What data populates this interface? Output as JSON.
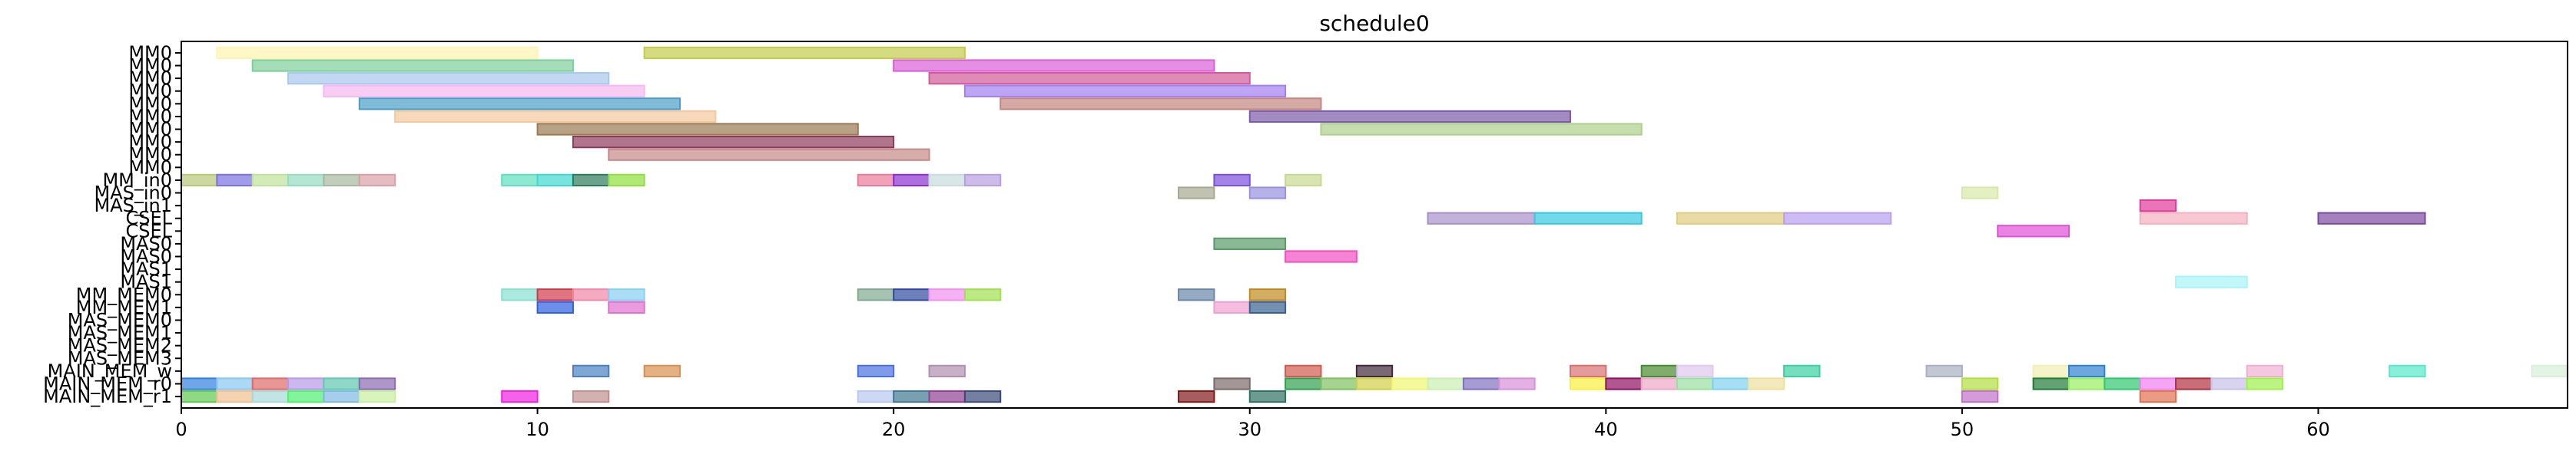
{
  "chart_data": {
    "type": "gantt",
    "title": "schedule0",
    "xlabel": "",
    "ylabel": "",
    "xlim": [
      0,
      67
    ],
    "x_ticks": [
      0,
      10,
      20,
      30,
      40,
      50,
      60
    ],
    "grid": false,
    "rows": [
      "MM0",
      "MM0",
      "MM0",
      "MM0",
      "MM0",
      "MM0",
      "MM0",
      "MM0",
      "MM0",
      "MM0",
      "MM_in0",
      "MAS_in0",
      "MAS_in1",
      "CSEL",
      "CSEL",
      "MAS0",
      "MAS0",
      "MAS1",
      "MAS1",
      "MM_MEM0",
      "MM_MEM1",
      "MAS_MEM0",
      "MAS_MEM1",
      "MAS_MEM2",
      "MAS_MEM3",
      "MAIN_MEM_w",
      "MAIN_MEM_r0",
      "MAIN_MEM_r1"
    ],
    "tasks": [
      {
        "row": 0,
        "start": 1,
        "end": 10,
        "color": "#fff3b0"
      },
      {
        "row": 0,
        "start": 13,
        "end": 22,
        "color": "#c2cc4c"
      },
      {
        "row": 1,
        "start": 2,
        "end": 11,
        "color": "#7ecf9a"
      },
      {
        "row": 1,
        "start": 20,
        "end": 29,
        "color": "#d85fd8"
      },
      {
        "row": 2,
        "start": 3,
        "end": 12,
        "color": "#a8c8ec"
      },
      {
        "row": 2,
        "start": 21,
        "end": 30,
        "color": "#d25a9a"
      },
      {
        "row": 3,
        "start": 4,
        "end": 13,
        "color": "#f5b8f0"
      },
      {
        "row": 3,
        "start": 22,
        "end": 31,
        "color": "#a27ff0"
      },
      {
        "row": 4,
        "start": 5,
        "end": 14,
        "color": "#4a9ec7"
      },
      {
        "row": 4,
        "start": 23,
        "end": 32,
        "color": "#c4867e"
      },
      {
        "row": 5,
        "start": 6,
        "end": 15,
        "color": "#f2c89c"
      },
      {
        "row": 5,
        "start": 30,
        "end": 39,
        "color": "#7b5aa6"
      },
      {
        "row": 6,
        "start": 10,
        "end": 19,
        "color": "#9a7a52"
      },
      {
        "row": 6,
        "start": 32,
        "end": 41,
        "color": "#aed08a"
      },
      {
        "row": 7,
        "start": 11,
        "end": 20,
        "color": "#8c3a5a"
      },
      {
        "row": 8,
        "start": 12,
        "end": 21,
        "color": "#c48a88"
      },
      {
        "row": 10,
        "start": 0,
        "end": 1,
        "color": "#b8c878"
      },
      {
        "row": 10,
        "start": 1,
        "end": 2,
        "color": "#7a70e0"
      },
      {
        "row": 10,
        "start": 2,
        "end": 3,
        "color": "#bfe39a"
      },
      {
        "row": 10,
        "start": 3,
        "end": 4,
        "color": "#96dcc0"
      },
      {
        "row": 10,
        "start": 4,
        "end": 5,
        "color": "#a8b8a0"
      },
      {
        "row": 10,
        "start": 5,
        "end": 6,
        "color": "#d8a0a8"
      },
      {
        "row": 10,
        "start": 9,
        "end": 10,
        "color": "#5ee0c0"
      },
      {
        "row": 10,
        "start": 10,
        "end": 11,
        "color": "#40d8d0"
      },
      {
        "row": 10,
        "start": 11,
        "end": 12,
        "color": "#2e7a5a"
      },
      {
        "row": 10,
        "start": 12,
        "end": 13,
        "color": "#90e040"
      },
      {
        "row": 10,
        "start": 19,
        "end": 20,
        "color": "#e87a9a"
      },
      {
        "row": 10,
        "start": 20,
        "end": 21,
        "color": "#8a30d0"
      },
      {
        "row": 10,
        "start": 21,
        "end": 22,
        "color": "#c8dcdc"
      },
      {
        "row": 10,
        "start": 22,
        "end": 23,
        "color": "#b8a0e0"
      },
      {
        "row": 10,
        "start": 29,
        "end": 30,
        "color": "#7a50e0"
      },
      {
        "row": 10,
        "start": 31,
        "end": 32,
        "color": "#c8d890"
      },
      {
        "row": 11,
        "start": 28,
        "end": 29,
        "color": "#a8a890"
      },
      {
        "row": 11,
        "start": 30,
        "end": 31,
        "color": "#9890e0"
      },
      {
        "row": 11,
        "start": 50,
        "end": 51,
        "color": "#d8e8a8"
      },
      {
        "row": 12,
        "start": 55,
        "end": 56,
        "color": "#e03a9a"
      },
      {
        "row": 13,
        "start": 35,
        "end": 38,
        "color": "#a890c8"
      },
      {
        "row": 13,
        "start": 38,
        "end": 41,
        "color": "#38c8e0"
      },
      {
        "row": 13,
        "start": 42,
        "end": 45,
        "color": "#e0cc80"
      },
      {
        "row": 13,
        "start": 45,
        "end": 48,
        "color": "#b8a0f0"
      },
      {
        "row": 13,
        "start": 55,
        "end": 58,
        "color": "#f4b0c0"
      },
      {
        "row": 13,
        "start": 60,
        "end": 63,
        "color": "#7e4aa0"
      },
      {
        "row": 14,
        "start": 51,
        "end": 53,
        "color": "#e050d8"
      },
      {
        "row": 15,
        "start": 29,
        "end": 31,
        "color": "#5a9a68"
      },
      {
        "row": 16,
        "start": 31,
        "end": 33,
        "color": "#f050c0"
      },
      {
        "row": 18,
        "start": 56,
        "end": 58,
        "color": "#a8f4f8"
      },
      {
        "row": 19,
        "start": 9,
        "end": 10,
        "color": "#88e0d0"
      },
      {
        "row": 19,
        "start": 10,
        "end": 11,
        "color": "#d03a4a"
      },
      {
        "row": 19,
        "start": 11,
        "end": 12,
        "color": "#f088a8"
      },
      {
        "row": 19,
        "start": 12,
        "end": 13,
        "color": "#88d0f0"
      },
      {
        "row": 19,
        "start": 19,
        "end": 20,
        "color": "#80a890"
      },
      {
        "row": 19,
        "start": 20,
        "end": 21,
        "color": "#304aa0"
      },
      {
        "row": 19,
        "start": 21,
        "end": 22,
        "color": "#f090f0"
      },
      {
        "row": 19,
        "start": 22,
        "end": 23,
        "color": "#a0e050"
      },
      {
        "row": 19,
        "start": 28,
        "end": 29,
        "color": "#6a88a8"
      },
      {
        "row": 19,
        "start": 30,
        "end": 31,
        "color": "#c08a20"
      },
      {
        "row": 20,
        "start": 10,
        "end": 11,
        "color": "#3060e0"
      },
      {
        "row": 20,
        "start": 12,
        "end": 13,
        "color": "#e070d0"
      },
      {
        "row": 20,
        "start": 29,
        "end": 30,
        "color": "#f0a0d0"
      },
      {
        "row": 20,
        "start": 30,
        "end": 31,
        "color": "#3a6090"
      },
      {
        "row": 25,
        "start": 11,
        "end": 12,
        "color": "#4a80c0"
      },
      {
        "row": 25,
        "start": 13,
        "end": 14,
        "color": "#d89050"
      },
      {
        "row": 25,
        "start": 19,
        "end": 20,
        "color": "#4a70e0"
      },
      {
        "row": 25,
        "start": 21,
        "end": 22,
        "color": "#b090b0"
      },
      {
        "row": 25,
        "start": 31,
        "end": 32,
        "color": "#d05a50"
      },
      {
        "row": 25,
        "start": 33,
        "end": 34,
        "color": "#402a3a"
      },
      {
        "row": 25,
        "start": 39,
        "end": 40,
        "color": "#d87070"
      },
      {
        "row": 25,
        "start": 41,
        "end": 42,
        "color": "#4a8a30"
      },
      {
        "row": 25,
        "start": 42,
        "end": 43,
        "color": "#e0c8f0"
      },
      {
        "row": 25,
        "start": 45,
        "end": 46,
        "color": "#3ad0a0"
      },
      {
        "row": 25,
        "start": 49,
        "end": 50,
        "color": "#a8b0c0"
      },
      {
        "row": 25,
        "start": 52,
        "end": 53,
        "color": "#f0f0b0"
      },
      {
        "row": 25,
        "start": 53,
        "end": 54,
        "color": "#3080d0"
      },
      {
        "row": 25,
        "start": 58,
        "end": 59,
        "color": "#f0b0d0"
      },
      {
        "row": 25,
        "start": 62,
        "end": 63,
        "color": "#58e8c8"
      },
      {
        "row": 25,
        "start": 66,
        "end": 67,
        "color": "#d8f0d8"
      },
      {
        "row": 26,
        "start": 0,
        "end": 1,
        "color": "#3080e0"
      },
      {
        "row": 26,
        "start": 1,
        "end": 2,
        "color": "#88c8f0"
      },
      {
        "row": 26,
        "start": 2,
        "end": 3,
        "color": "#e06a6a"
      },
      {
        "row": 26,
        "start": 3,
        "end": 4,
        "color": "#b898e8"
      },
      {
        "row": 26,
        "start": 4,
        "end": 5,
        "color": "#60c8b0"
      },
      {
        "row": 26,
        "start": 5,
        "end": 6,
        "color": "#8a6ab0"
      },
      {
        "row": 26,
        "start": 29,
        "end": 30,
        "color": "#7a6a6a"
      },
      {
        "row": 26,
        "start": 31,
        "end": 32,
        "color": "#30a050"
      },
      {
        "row": 26,
        "start": 32,
        "end": 33,
        "color": "#80c060"
      },
      {
        "row": 26,
        "start": 33,
        "end": 34,
        "color": "#d0d048"
      },
      {
        "row": 26,
        "start": 34,
        "end": 35,
        "color": "#f0f870"
      },
      {
        "row": 26,
        "start": 35,
        "end": 36,
        "color": "#c8f0b0"
      },
      {
        "row": 26,
        "start": 36,
        "end": 37,
        "color": "#8070c0"
      },
      {
        "row": 26,
        "start": 37,
        "end": 38,
        "color": "#d890d8"
      },
      {
        "row": 26,
        "start": 39,
        "end": 40,
        "color": "#f8f040"
      },
      {
        "row": 26,
        "start": 40,
        "end": 41,
        "color": "#901060"
      },
      {
        "row": 26,
        "start": 41,
        "end": 42,
        "color": "#f0a8c8"
      },
      {
        "row": 26,
        "start": 42,
        "end": 43,
        "color": "#98e0a0"
      },
      {
        "row": 26,
        "start": 43,
        "end": 44,
        "color": "#80d0f0"
      },
      {
        "row": 26,
        "start": 44,
        "end": 45,
        "color": "#f0e0a0"
      },
      {
        "row": 26,
        "start": 50,
        "end": 51,
        "color": "#b0e040"
      },
      {
        "row": 26,
        "start": 52,
        "end": 53,
        "color": "#207a38"
      },
      {
        "row": 26,
        "start": 53,
        "end": 54,
        "color": "#98f060"
      },
      {
        "row": 26,
        "start": 54,
        "end": 55,
        "color": "#30c870"
      },
      {
        "row": 26,
        "start": 55,
        "end": 56,
        "color": "#f080f0"
      },
      {
        "row": 26,
        "start": 56,
        "end": 57,
        "color": "#b03040"
      },
      {
        "row": 26,
        "start": 57,
        "end": 58,
        "color": "#c8c0e8"
      },
      {
        "row": 26,
        "start": 58,
        "end": 59,
        "color": "#a0f050"
      },
      {
        "row": 27,
        "start": 0,
        "end": 1,
        "color": "#60c850"
      },
      {
        "row": 27,
        "start": 1,
        "end": 2,
        "color": "#f0c090"
      },
      {
        "row": 27,
        "start": 2,
        "end": 3,
        "color": "#a8d8d8"
      },
      {
        "row": 27,
        "start": 3,
        "end": 4,
        "color": "#50f070"
      },
      {
        "row": 27,
        "start": 4,
        "end": 5,
        "color": "#80b8e0"
      },
      {
        "row": 27,
        "start": 5,
        "end": 6,
        "color": "#c8f0a0"
      },
      {
        "row": 27,
        "start": 9,
        "end": 10,
        "color": "#f020e0"
      },
      {
        "row": 27,
        "start": 11,
        "end": 12,
        "color": "#c09090"
      },
      {
        "row": 27,
        "start": 19,
        "end": 20,
        "color": "#b8c8f0"
      },
      {
        "row": 27,
        "start": 20,
        "end": 21,
        "color": "#407890"
      },
      {
        "row": 27,
        "start": 21,
        "end": 22,
        "color": "#904090"
      },
      {
        "row": 27,
        "start": 22,
        "end": 23,
        "color": "#3a4a78"
      },
      {
        "row": 27,
        "start": 28,
        "end": 29,
        "color": "#801818"
      },
      {
        "row": 27,
        "start": 30,
        "end": 31,
        "color": "#307060"
      },
      {
        "row": 27,
        "start": 50,
        "end": 51,
        "color": "#c070c8"
      },
      {
        "row": 27,
        "start": 55,
        "end": 56,
        "color": "#e07050"
      }
    ]
  }
}
